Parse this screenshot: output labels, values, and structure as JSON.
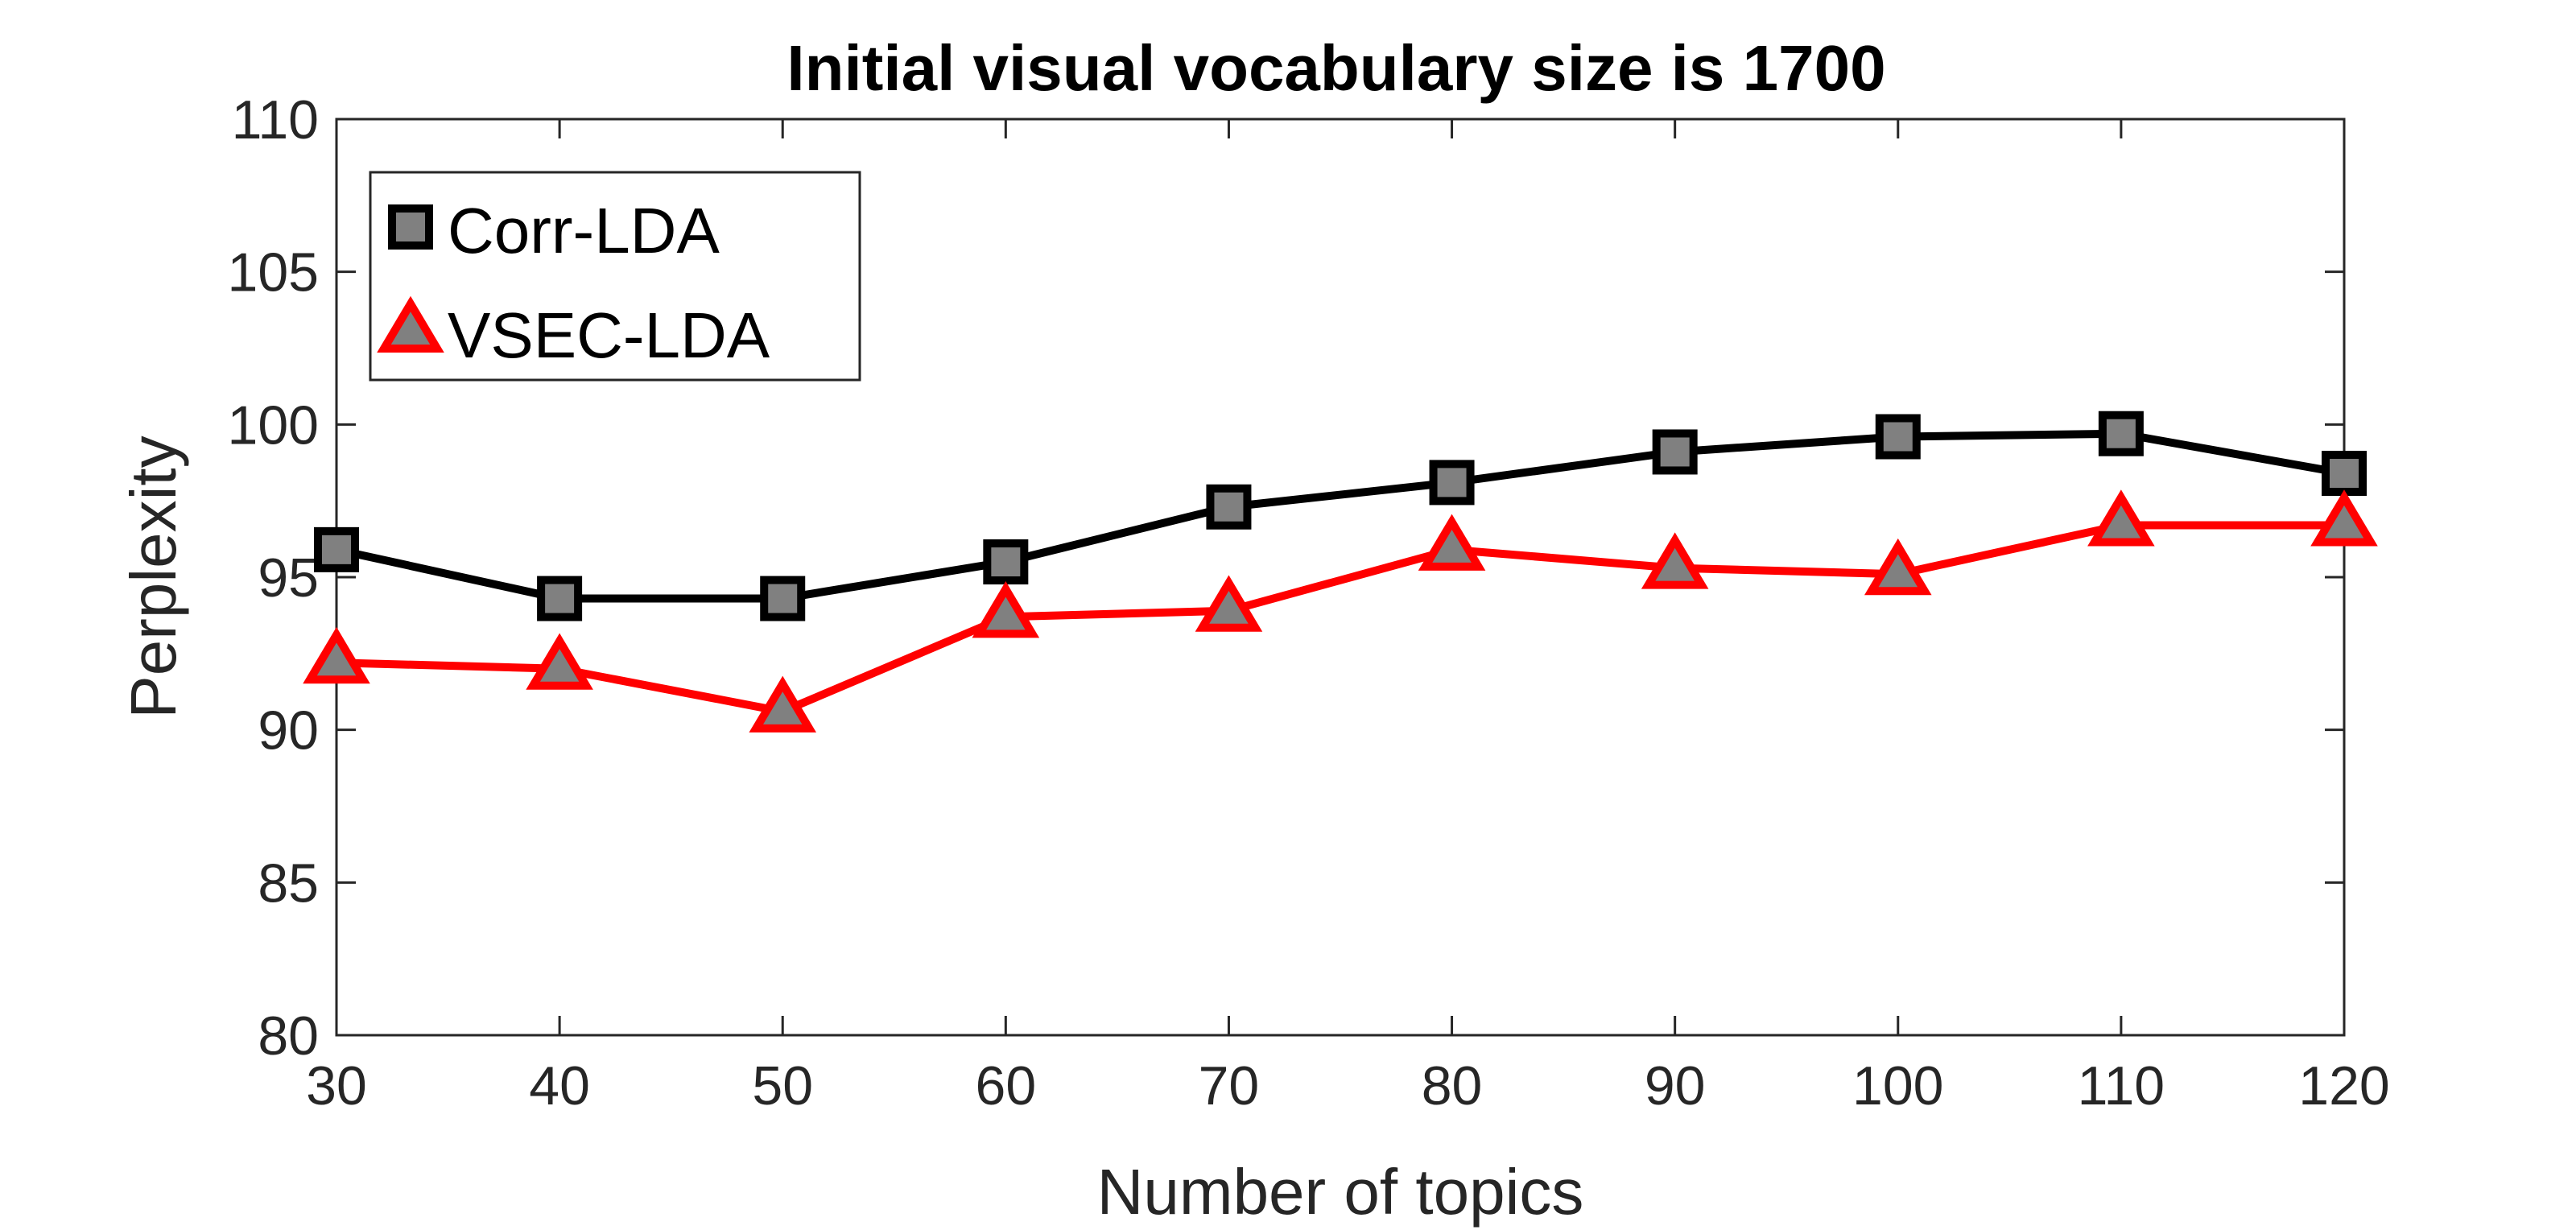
{
  "chart_data": {
    "type": "line",
    "title": "Initial visual vocabulary size is 1700",
    "xlabel": "Number of topics",
    "ylabel": "Perplexity",
    "x": [
      30,
      40,
      50,
      60,
      70,
      80,
      90,
      100,
      110,
      120
    ],
    "xticks": [
      "30",
      "40",
      "50",
      "60",
      "70",
      "80",
      "90",
      "100",
      "110",
      "120"
    ],
    "yticks": [
      "80",
      "85",
      "90",
      "95",
      "100",
      "105",
      "110"
    ],
    "xlim": [
      30,
      120
    ],
    "ylim": [
      80,
      110
    ],
    "grid": false,
    "legend_position": "top-left",
    "series": [
      {
        "name": "Corr-LDA",
        "values": [
          95.9,
          94.3,
          94.3,
          95.5,
          97.3,
          98.1,
          99.1,
          99.6,
          99.7,
          98.4
        ],
        "color": "#000000",
        "marker": "square",
        "marker_fill": "#808080"
      },
      {
        "name": "VSEC-LDA",
        "values": [
          92.2,
          92.0,
          90.6,
          93.7,
          93.9,
          95.9,
          95.3,
          95.1,
          96.7,
          96.7
        ],
        "color": "#ff0000",
        "marker": "triangle",
        "marker_fill": "#808080"
      }
    ]
  }
}
